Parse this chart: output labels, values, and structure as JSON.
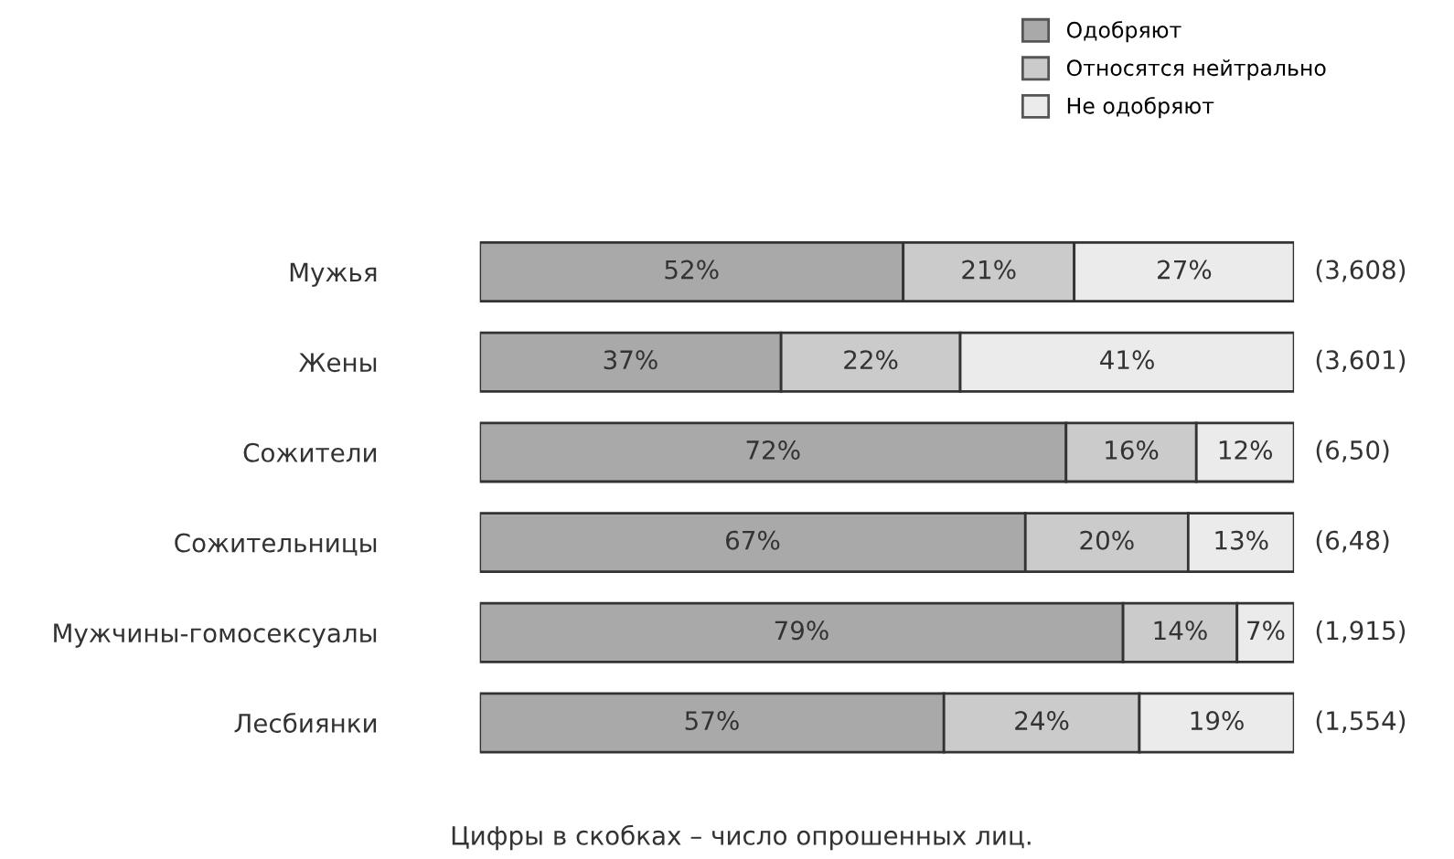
{
  "chart_data": {
    "type": "bar",
    "orientation": "horizontal",
    "stacked": true,
    "legend": "top right",
    "categories": [
      "Мужья",
      "Жены",
      "Сожители",
      "Сожительницы",
      "Мужчины-гомосексуалы",
      "Лесбиянки"
    ],
    "series": [
      {
        "name": "Одобряют",
        "color": "#a9a9a9",
        "values": [
          52,
          37,
          72,
          67,
          79,
          57
        ],
        "value_labels": [
          "52%",
          "37%",
          "72%",
          "67%",
          "79%",
          "57%"
        ]
      },
      {
        "name": "Относятся нейтрально",
        "color": "#cbcbcb",
        "values": [
          21,
          22,
          16,
          20,
          14,
          24
        ],
        "value_labels": [
          "21%",
          "22%",
          "16%",
          "20%",
          "14%",
          "24%"
        ]
      },
      {
        "name": "Не одобряют",
        "color": "#ebebeb",
        "values": [
          27,
          41,
          12,
          13,
          7,
          19
        ],
        "value_labels": [
          "27%",
          "41%",
          "12%",
          "13%",
          "7%",
          "19%"
        ]
      }
    ],
    "annotations": [
      "(3,608)",
      "(3,601)",
      "(6,50)",
      "(6,48)",
      "(1,915)",
      "(1,554)",
      "Цифры в скобках – число опрошенных лиц."
    ]
  }
}
